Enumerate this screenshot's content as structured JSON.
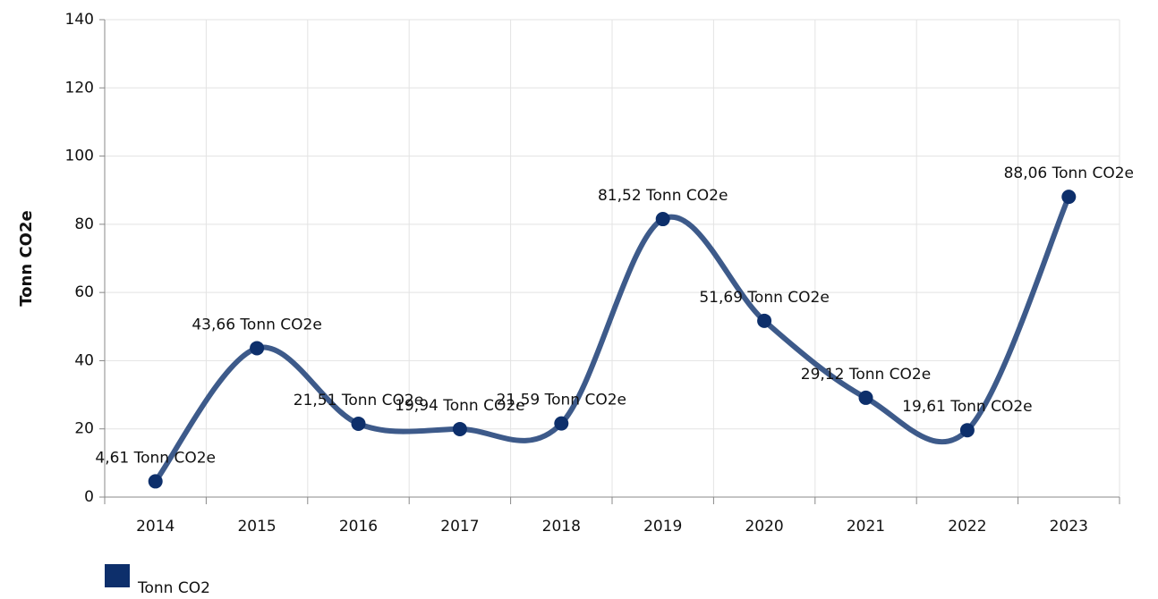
{
  "chart_data": {
    "type": "line",
    "y_label": "Tonn CO2e",
    "categories": [
      "2014",
      "2015",
      "2016",
      "2017",
      "2018",
      "2019",
      "2020",
      "2021",
      "2022",
      "2023"
    ],
    "series": [
      {
        "name": "Tonn CO2",
        "color": "#0d2f6b",
        "line_color": "#3d5a8a",
        "values": [
          4.61,
          43.66,
          21.51,
          19.94,
          21.59,
          81.52,
          51.69,
          29.12,
          19.61,
          88.06
        ],
        "value_labels": [
          "4,61 Tonn CO2e",
          "43,66 Tonn CO2e",
          "21,51 Tonn CO2e",
          "19,94 Tonn CO2e",
          "21,59 Tonn CO2e",
          "81,52 Tonn CO2e",
          "51,69 Tonn CO2e",
          "29,12 Tonn CO2e",
          "19,61 Tonn CO2e",
          "88,06 Tonn CO2e"
        ]
      }
    ],
    "ylim": [
      0,
      140
    ],
    "yticks": [
      0,
      20,
      40,
      60,
      80,
      100,
      120,
      140
    ],
    "grid": true,
    "legend": "bottom-left"
  }
}
